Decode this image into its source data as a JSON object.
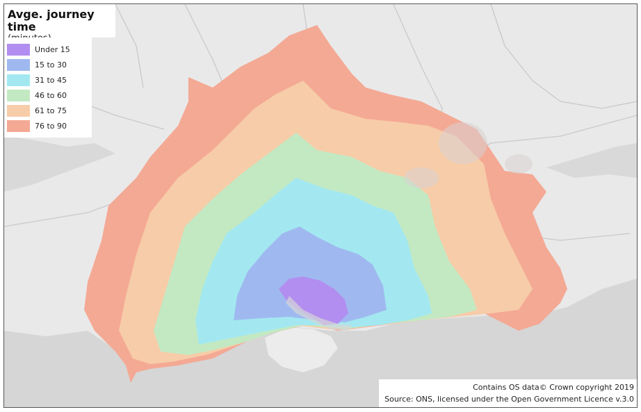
{
  "title": "Avge. journey time",
  "subtitle": "(minutes)",
  "legend": [
    {
      "label": "Under 15",
      "color": "#b28ef0"
    },
    {
      "label": "15 to 30",
      "color": "#9fb9f0"
    },
    {
      "label": "31 to 45",
      "color": "#a3e8f0"
    },
    {
      "label": "46 to 60",
      "color": "#c3e9c3"
    },
    {
      "label": "61 to 75",
      "color": "#f7cca8"
    },
    {
      "label": "76 to 90",
      "color": "#f4a994"
    }
  ],
  "attribution": {
    "line1": "Contains OS data© Crown copyright 2019",
    "line2": "Source: ONS, licensed under the Open Government Licence v.3.0"
  },
  "colors": {
    "sea": "#d6d6d6",
    "land": "#ececec",
    "roads": "#c9c9c9"
  }
}
